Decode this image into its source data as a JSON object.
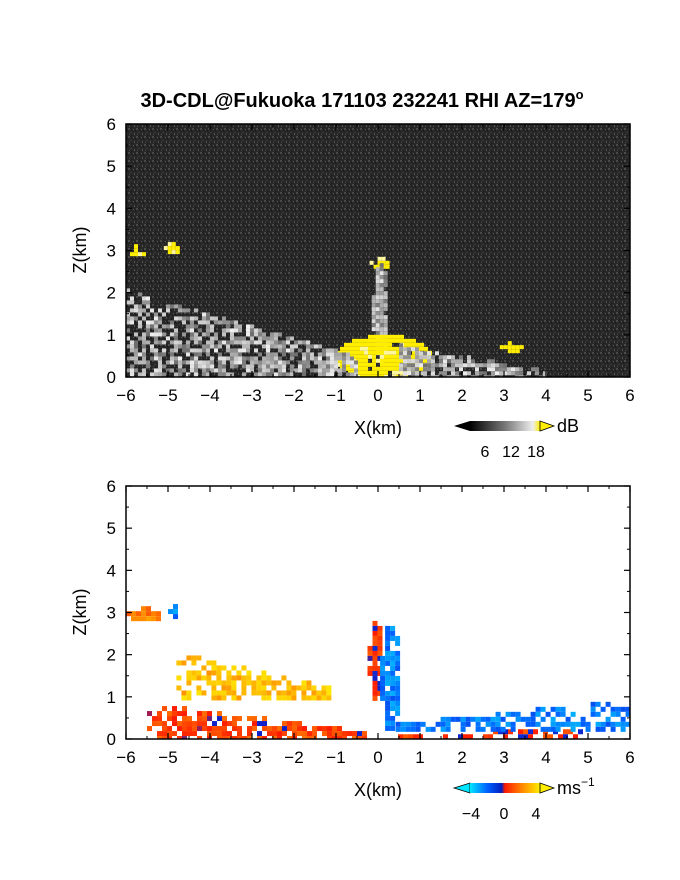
{
  "title_main": "3D-CDL@Fukuoka 171103 232241 RHI AZ=179",
  "title_degree": "o",
  "chart_data": [
    {
      "type": "heatmap",
      "quantity": "reflectivity",
      "xlabel": "X(km)",
      "ylabel": "Z(km)",
      "xlim": [
        -6,
        6
      ],
      "ylim": [
        0,
        6
      ],
      "xticks": [
        "-6",
        "-5",
        "-4",
        "-3",
        "-2",
        "-1",
        "0",
        "1",
        "2",
        "3",
        "4",
        "5",
        "6"
      ],
      "yticks": [
        "0",
        "1",
        "2",
        "3",
        "4",
        "5",
        "6"
      ],
      "colorbar": {
        "unit": "dB",
        "ticks": [
          "6",
          "12",
          "18"
        ],
        "range": [
          0,
          21
        ]
      },
      "colors": {
        "background": "#2a2a2a",
        "high": "#ffee00",
        "low": "#f0f0f0"
      },
      "features": [
        {
          "kind": "cloud-blob",
          "x": [
            -6.0,
            -5.6
          ],
          "z": [
            2.9,
            3.15
          ],
          "level": "high"
        },
        {
          "kind": "cloud-blob",
          "x": [
            -5.1,
            -4.8
          ],
          "z": [
            2.95,
            3.2
          ],
          "level": "high"
        },
        {
          "kind": "cloud-blob",
          "x": [
            -0.2,
            0.25
          ],
          "z": [
            2.6,
            2.85
          ],
          "level": "high"
        },
        {
          "kind": "vertical-plume",
          "x": [
            -0.15,
            0.2
          ],
          "z": [
            0.4,
            2.7
          ],
          "level": "medium"
        },
        {
          "kind": "near-surface-core",
          "x": [
            -1.0,
            1.2
          ],
          "z": [
            0.0,
            1.0
          ],
          "level": "high"
        },
        {
          "kind": "fan-left",
          "x": [
            -6.0,
            -0.5
          ],
          "z": [
            0.0,
            2.1
          ],
          "level": "medium"
        },
        {
          "kind": "fan-right",
          "x": [
            0.5,
            4.0
          ],
          "z": [
            0.0,
            0.8
          ],
          "level": "medium"
        },
        {
          "kind": "cloud-blob",
          "x": [
            2.9,
            3.4
          ],
          "z": [
            0.65,
            0.85
          ],
          "level": "high"
        }
      ]
    },
    {
      "type": "heatmap",
      "quantity": "doppler velocity",
      "xlabel": "X(km)",
      "ylabel": "Z(km)",
      "xlim": [
        -6,
        6
      ],
      "ylim": [
        0,
        6
      ],
      "xticks": [
        "-6",
        "-5",
        "-4",
        "-3",
        "-2",
        "-1",
        "0",
        "1",
        "2",
        "3",
        "4",
        "5",
        "6"
      ],
      "yticks": [
        "0",
        "1",
        "2",
        "3",
        "4",
        "5",
        "6"
      ],
      "colorbar": {
        "unit": "ms",
        "unit_exponent": "−1",
        "ticks": [
          "−4",
          "0",
          "4"
        ],
        "range": [
          -6,
          6
        ]
      },
      "colors": {
        "neg_strong": "#00c8ff",
        "neg": "#1040ff",
        "zero": "#ff2a00",
        "pos": "#ff9a00",
        "pos_strong": "#ffee00"
      },
      "features": [
        {
          "kind": "cloud-blob",
          "x": [
            -6.0,
            -5.2
          ],
          "z": [
            2.85,
            3.15
          ],
          "velocity": 2.5
        },
        {
          "kind": "cloud-blob",
          "x": [
            -5.0,
            -4.8
          ],
          "z": [
            2.95,
            3.2
          ],
          "velocity": -3.5
        },
        {
          "kind": "vertical-plume-left-edge",
          "x": [
            -0.25,
            0.05
          ],
          "z": [
            1.0,
            2.8
          ],
          "velocity": 0.5
        },
        {
          "kind": "vertical-plume-right-edge",
          "x": [
            0.05,
            0.45
          ],
          "z": [
            0.2,
            2.8
          ],
          "velocity": -3.5
        },
        {
          "kind": "fan-left-upper",
          "x": [
            -4.8,
            -1.2
          ],
          "z": [
            1.0,
            2.1
          ],
          "velocity": 4.5
        },
        {
          "kind": "fan-left-lower",
          "x": [
            -5.5,
            -0.3
          ],
          "z": [
            0.0,
            0.9
          ],
          "velocity": 1.0
        },
        {
          "kind": "surface-layer-right",
          "x": [
            0.0,
            4.8
          ],
          "z": [
            0.0,
            0.35
          ],
          "velocity": 0.5
        },
        {
          "kind": "layer-right-upper",
          "x": [
            0.3,
            5.9
          ],
          "z": [
            0.2,
            1.0
          ],
          "velocity": -3.5
        }
      ]
    }
  ]
}
